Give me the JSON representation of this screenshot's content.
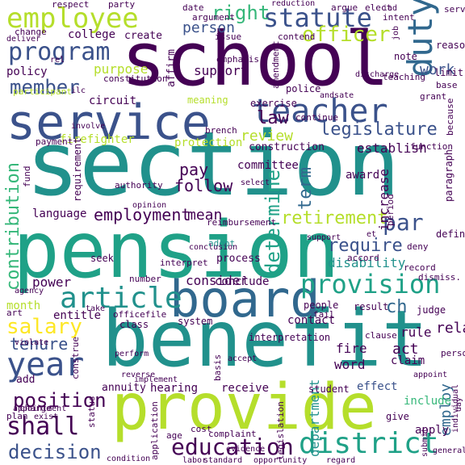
{
  "colors": {
    "background": "#ffffff",
    "deep_purple": "#440154",
    "indigo": "#3b528b",
    "blue": "#31688e",
    "teal": "#21918c",
    "sea_green": "#1fa187",
    "green": "#35b779",
    "light_green": "#6ece58",
    "yellow_green": "#b5de2b",
    "yellow": "#fde725"
  },
  "words": [
    "school",
    "section",
    "pension",
    "benefit",
    "provide",
    "service",
    "board",
    "employee",
    "teacher",
    "statute",
    "program",
    "member",
    "duty",
    "provision",
    "article",
    "year",
    "district",
    "shall",
    "decision",
    "education",
    "position",
    "salary",
    "legislature",
    "officer",
    "contribution",
    "right",
    "law",
    "retirement",
    "par",
    "require",
    "determine",
    "employment",
    "tenure",
    "term",
    "review",
    "person",
    "college",
    "purpose",
    "disability",
    "ch",
    "work",
    "employ",
    "department",
    "firefighter",
    "protection",
    "construction",
    "establish",
    "increase",
    "award",
    "pay",
    "follow",
    "language",
    "committee",
    "mean",
    "power",
    "conclude",
    "consider",
    "seek",
    "process",
    "adopt",
    "relate",
    "act",
    "fire",
    "claim",
    "word",
    "effect",
    "include",
    "apply",
    "rule",
    "judge",
    "result",
    "people",
    "system",
    "interpretation",
    "clause",
    "hearing",
    "receive",
    "student",
    "give",
    "annuity",
    "entitle",
    "class",
    "officefile",
    "month",
    "art",
    "policy",
    "circuit",
    "affirm",
    "support",
    "police",
    "exercise",
    "meaning",
    "amendment",
    "emphasis",
    "contend",
    "issue",
    "argument",
    "create",
    "change",
    "reason",
    "limit",
    "note",
    "base",
    "grant",
    "function",
    "because",
    "paragraph",
    "define",
    "deny",
    "dismiss.",
    "record",
    "basis",
    "complaint",
    "cost",
    "age",
    "charge",
    "status",
    "plan",
    "add",
    "construe",
    "interpret",
    "number",
    "brench",
    "continue",
    "period",
    "participant",
    "constitution",
    "payment",
    "fund",
    "requirement",
    "authority",
    "teaching",
    "elect",
    "intent",
    "argue",
    "date",
    "party",
    "respect",
    "reduction",
    "serve",
    "rel",
    "involve",
    "fail",
    "select",
    "accept",
    "legislation",
    "application",
    "personnel",
    "day",
    "opportunity",
    "regard",
    "condition",
    "evidence",
    "standard",
    "labor",
    "submit",
    "support",
    "opinion",
    "reimbursement",
    "violate",
    "perform",
    "appointment",
    "exist",
    "reverse",
    "implement",
    "iad",
    "general",
    "individual",
    "appoint",
    "conclusion",
    "accord",
    "agency",
    "ilc",
    "deliver",
    "discharge",
    "andsate",
    "job",
    "take",
    "contact",
    "et",
    "no",
    "e"
  ]
}
